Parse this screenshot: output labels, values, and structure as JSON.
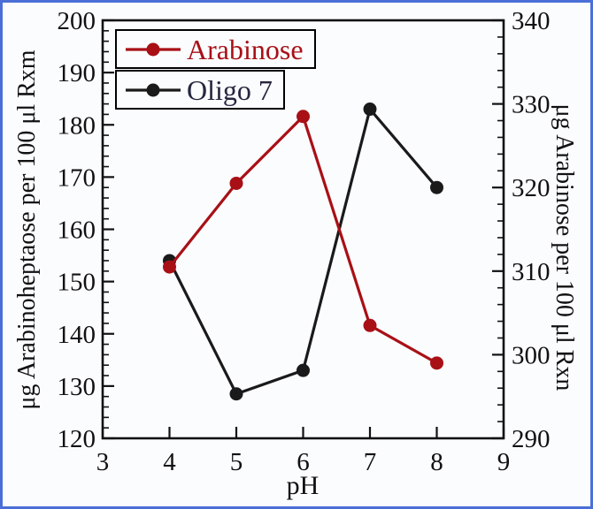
{
  "frame": {
    "border_color": "#4b6fd6",
    "background": "#fbfcfe"
  },
  "axis": {
    "color": "#111111",
    "tick_label_color": "#111111",
    "tick_label_font_size": 29
  },
  "chart_data": {
    "type": "line",
    "title": "",
    "xlabel": "pH",
    "ylabel_left": "μg Arabinoheptaose per 100 μl Rxm",
    "ylabel_right": "μg Arabinose per 100 μl Rxn",
    "xlim": [
      3,
      9
    ],
    "ylim_left": [
      120,
      200
    ],
    "ylim_right": [
      290,
      340
    ],
    "x_ticks": [
      3,
      4,
      5,
      6,
      7,
      8,
      9
    ],
    "left_ticks": [
      120,
      130,
      140,
      150,
      160,
      170,
      180,
      190,
      200
    ],
    "right_ticks": [
      290,
      300,
      310,
      320,
      330,
      340
    ],
    "y_minor_step": 2,
    "grid": false,
    "legend_position": "top-left",
    "x": [
      4,
      5,
      6,
      7,
      8
    ],
    "series": [
      {
        "name": "Arabinose",
        "axis": "right",
        "color": "#a81016",
        "text_color": "#a81016",
        "values": [
          310.5,
          320.5,
          328.5,
          303.5,
          299
        ]
      },
      {
        "name": "Oligo 7",
        "axis": "left",
        "color": "#1a1a1a",
        "text_color": "#26263e",
        "values": [
          154,
          128.5,
          133,
          183,
          168
        ]
      }
    ]
  }
}
